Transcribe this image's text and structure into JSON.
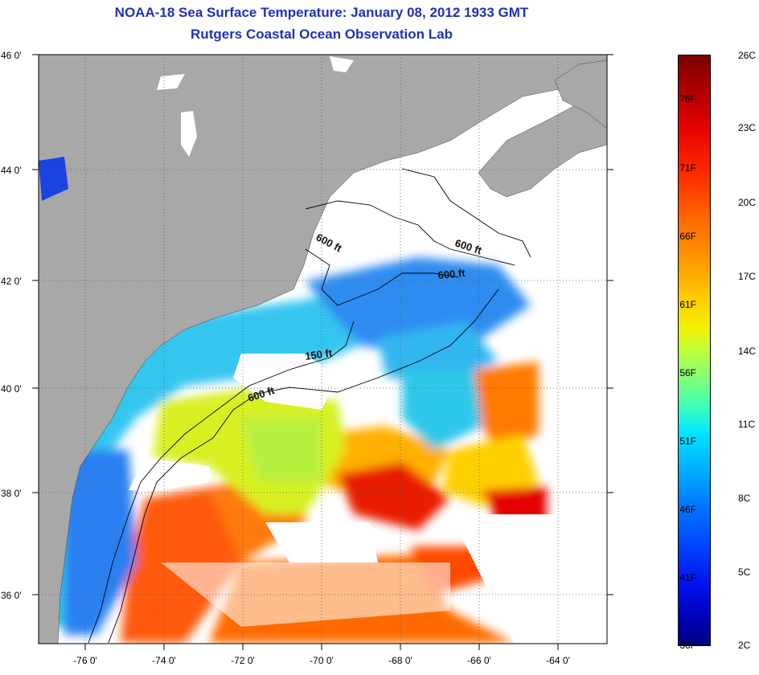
{
  "header": {
    "title": "NOAA-18 Sea Surface Temperature:  January 08, 2012 1933 GMT",
    "subtitle": "Rutgers Coastal Ocean Observation Lab"
  },
  "map": {
    "latitude_labels": [
      "46 0'",
      "44 0'",
      "42 0'",
      "40 0'",
      "38 0'",
      "36 0'"
    ],
    "longitude_labels": [
      "-76 0'",
      "-74 0'",
      "-72 0'",
      "-70 0'",
      "-68 0'",
      "-66 0'",
      "-64 0'"
    ],
    "contour_labels": [
      "600 ft",
      "600 ft",
      "600 ft",
      "150 ft",
      "600 ft"
    ],
    "colors": {
      "land": "#a8a8a8",
      "no_data": "#ffffff",
      "frame": "#000000"
    }
  },
  "colorbar": {
    "fahrenheit_labels": [
      "76F",
      "71F",
      "66F",
      "61F",
      "56F",
      "51F",
      "46F",
      "41F",
      "36F"
    ],
    "celsius_labels": [
      "26C",
      "23C",
      "20C",
      "17C",
      "14C",
      "11C",
      "8C",
      "5C",
      "2C"
    ],
    "min_color": "#000080",
    "max_color": "#7a0000"
  }
}
